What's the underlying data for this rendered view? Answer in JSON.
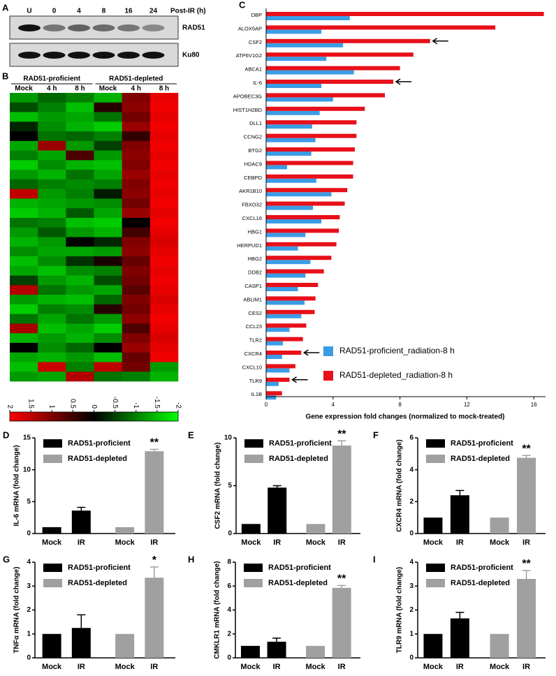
{
  "chart_data": [
    {
      "type": "blot",
      "label": "A",
      "lanes": [
        "U",
        "0",
        "4",
        "8",
        "16",
        "24"
      ],
      "xlabel": "Post-IR (h)",
      "blots": [
        {
          "name": "RAD51",
          "intensity": [
            1,
            0.5,
            0.6,
            0.55,
            0.5,
            0.4
          ]
        },
        {
          "name": "Ku80",
          "intensity": [
            1,
            1,
            1,
            1,
            1,
            1
          ]
        }
      ]
    },
    {
      "type": "heatmap",
      "label": "B",
      "groups": [
        "RAD51-proficient",
        "RAD51-depleted"
      ],
      "columns": [
        "Mock",
        "4 h",
        "8 h",
        "Mock",
        "4 h",
        "8 h"
      ],
      "clim": [
        -2,
        2
      ],
      "cbar_ticks": [
        2,
        1.5,
        1,
        0.5,
        0,
        -0.5,
        -1,
        -1.5,
        -2
      ],
      "values": [
        [
          -1.2,
          -0.8,
          -1.0,
          -1.4,
          1.0,
          1.8
        ],
        [
          -0.6,
          -1.0,
          -1.5,
          0.3,
          1.1,
          1.9
        ],
        [
          -1.5,
          -1.2,
          -1.3,
          -0.9,
          0.9,
          1.8
        ],
        [
          -0.3,
          -1.1,
          -1.4,
          -1.6,
          1.2,
          1.9
        ],
        [
          0,
          -0.9,
          -0.8,
          -1.0,
          0.4,
          1.8
        ],
        [
          -1.3,
          1.2,
          -1.2,
          -0.5,
          1.0,
          1.9
        ],
        [
          -1.0,
          -1.3,
          0.6,
          -1.2,
          1.1,
          1.8
        ],
        [
          -1.6,
          -1.1,
          -1.4,
          -1.5,
          1.0,
          1.9
        ],
        [
          -1.2,
          -1.4,
          -0.9,
          -1.3,
          1.2,
          1.8
        ],
        [
          -0.8,
          -1.0,
          -1.1,
          -1.0,
          1.0,
          1.9
        ],
        [
          1.5,
          -1.2,
          -1.0,
          -0.2,
          1.1,
          1.8
        ],
        [
          -1.4,
          -1.3,
          -1.2,
          -1.1,
          0.9,
          1.9
        ],
        [
          -1.6,
          -1.4,
          -0.7,
          -1.3,
          1.2,
          1.8
        ],
        [
          -0.9,
          -1.0,
          -1.5,
          -1.6,
          0,
          1.9
        ],
        [
          -1.2,
          -0.7,
          -1.2,
          -1.4,
          0.5,
          1.8
        ],
        [
          -1.4,
          -1.2,
          0,
          -0.3,
          1.0,
          1.7
        ],
        [
          -1.1,
          -1.3,
          -1.3,
          -1.2,
          1.1,
          1.8
        ],
        [
          -1.5,
          -1.1,
          -0.4,
          0.2,
          0.8,
          1.9
        ],
        [
          -1.3,
          -1.5,
          -1.1,
          -1.0,
          1.0,
          1.8
        ],
        [
          -0.5,
          -1.2,
          -1.4,
          -0.6,
          0.9,
          1.9
        ],
        [
          1.4,
          -0.9,
          -1.2,
          -1.3,
          0.7,
          1.8
        ],
        [
          -1.2,
          -1.4,
          -1.5,
          -0.8,
          1.0,
          1.7
        ],
        [
          -1.6,
          -1.0,
          -1.1,
          0.3,
          0.9,
          1.8
        ],
        [
          -0.9,
          -1.3,
          -0.9,
          -1.2,
          1.1,
          1.9
        ],
        [
          1.3,
          -1.5,
          -1.3,
          -1.6,
          0.6,
          1.8
        ],
        [
          -1.4,
          -1.2,
          -1.4,
          -1.1,
          1.0,
          1.7
        ],
        [
          0,
          -1.1,
          -0.8,
          0,
          1.2,
          1.8
        ],
        [
          -1.3,
          -1.4,
          -1.2,
          -1.5,
          0.8,
          1.9
        ],
        [
          -1.5,
          1.6,
          -1.0,
          1.5,
          0.9,
          -1.2
        ],
        [
          -1.2,
          -1.3,
          1.4,
          -0.9,
          -1.0,
          -1.4
        ]
      ]
    },
    {
      "type": "hbar",
      "label": "C",
      "xlabel": "Gene expression fold changes (normalized to mock-treated)",
      "categories": [
        "DBP",
        "ALOX5AP",
        "CSF2",
        "ATP6V1G2",
        "ABCA1",
        "IL-6",
        "APOBEC3G",
        "HIST1H2BD",
        "DLL1",
        "CCNG2",
        "BTG2",
        "HDAC9",
        "CEBPD",
        "AKR1B10",
        "FBXO32",
        "CXCL16",
        "HBG1",
        "HERPUD1",
        "HBG2",
        "DDB2",
        "CASP1",
        "ABLIM1",
        "CES2",
        "CCL23",
        "TLR2",
        "CXCR4",
        "CXCL10",
        "TLR9",
        "IL1B"
      ],
      "series": [
        {
          "name": "RAD51-proficient_radiation-8 h",
          "color": "#3b9ce5",
          "values": [
            5.0,
            3.3,
            4.6,
            3.6,
            5.25,
            3.3,
            4.0,
            3.2,
            2.75,
            2.95,
            2.7,
            1.25,
            3.0,
            3.9,
            2.8,
            3.3,
            2.35,
            1.9,
            2.65,
            2.35,
            1.9,
            2.3,
            2.1,
            1.4,
            1.0,
            0.95,
            1.4,
            0.75,
            0.6
          ]
        },
        {
          "name": "RAD51-depleted_radiation-8 h",
          "color": "#e8101a",
          "values": [
            16.6,
            13.7,
            9.8,
            8.8,
            8.0,
            7.6,
            7.1,
            5.9,
            5.4,
            5.4,
            5.3,
            5.2,
            5.2,
            4.85,
            4.7,
            4.4,
            4.35,
            4.2,
            3.9,
            3.45,
            3.1,
            2.95,
            2.9,
            2.4,
            2.2,
            2.1,
            1.75,
            1.4,
            0.95
          ]
        }
      ],
      "xlim": [
        0,
        16.7
      ],
      "xticks": [
        0,
        4,
        8,
        12,
        16
      ],
      "arrow_categories": [
        2,
        5,
        25,
        27
      ]
    },
    {
      "type": "bar",
      "label": "D",
      "ylabel": "IL-6 mRNA (fold change)",
      "categories": [
        "Mock",
        "IR",
        "Mock",
        "IR"
      ],
      "ylim": [
        0,
        15
      ],
      "yticks": [
        0,
        5,
        10,
        15
      ],
      "annotation": "**",
      "series": [
        {
          "name": "RAD51-proficient",
          "color": "#000000",
          "values": [
            1,
            3.6,
            null,
            null
          ],
          "errors": [
            null,
            0.5,
            null,
            null
          ]
        },
        {
          "name": "RAD51-depleted",
          "color": "#a0a0a0",
          "values": [
            null,
            null,
            1,
            12.9
          ],
          "errors": [
            null,
            null,
            null,
            0.3
          ]
        }
      ]
    },
    {
      "type": "bar",
      "label": "E",
      "ylabel": "CSF2 mRNA (fold change)",
      "categories": [
        "Mock",
        "IR",
        "Mock",
        "IR"
      ],
      "ylim": [
        0,
        10
      ],
      "yticks": [
        0,
        5,
        10
      ],
      "annotation": "**",
      "series": [
        {
          "name": "RAD51-proficient",
          "color": "#000000",
          "values": [
            1,
            4.8,
            null,
            null
          ],
          "errors": [
            null,
            0.2,
            null,
            null
          ]
        },
        {
          "name": "RAD51-depleted",
          "color": "#a0a0a0",
          "values": [
            null,
            null,
            1,
            9.2
          ],
          "errors": [
            null,
            null,
            null,
            0.5
          ]
        }
      ]
    },
    {
      "type": "bar",
      "label": "F",
      "ylabel": "CXCR4 mRNA (fold change)",
      "categories": [
        "Mock",
        "IR",
        "Mock",
        "IR"
      ],
      "ylim": [
        0,
        6
      ],
      "yticks": [
        0,
        2,
        4,
        6
      ],
      "annotation": "**",
      "series": [
        {
          "name": "RAD51-proficient",
          "color": "#000000",
          "values": [
            1,
            2.4,
            null,
            null
          ],
          "errors": [
            null,
            0.3,
            null,
            null
          ]
        },
        {
          "name": "RAD51-depleted",
          "color": "#a0a0a0",
          "values": [
            null,
            null,
            1,
            4.75
          ],
          "errors": [
            null,
            null,
            null,
            0.15
          ]
        }
      ]
    },
    {
      "type": "bar",
      "label": "G",
      "ylabel": "TNFα mRNA (fold change)",
      "categories": [
        "Mock",
        "IR",
        "Mock",
        "IR"
      ],
      "ylim": [
        0,
        4
      ],
      "yticks": [
        0,
        1,
        2,
        3,
        4
      ],
      "annotation": "*",
      "series": [
        {
          "name": "RAD51-proficient",
          "color": "#000000",
          "values": [
            1,
            1.25,
            null,
            null
          ],
          "errors": [
            null,
            0.55,
            null,
            null
          ]
        },
        {
          "name": "RAD51-depleted",
          "color": "#a0a0a0",
          "values": [
            null,
            null,
            1,
            3.35
          ],
          "errors": [
            null,
            null,
            null,
            0.45
          ]
        }
      ]
    },
    {
      "type": "bar",
      "label": "H",
      "ylabel": "CMKLR1 mRNA (fold change)",
      "categories": [
        "Mock",
        "IR",
        "Mock",
        "IR"
      ],
      "ylim": [
        0,
        8
      ],
      "yticks": [
        0,
        2,
        4,
        6,
        8
      ],
      "annotation": "**",
      "series": [
        {
          "name": "RAD51-proficient",
          "color": "#000000",
          "values": [
            1,
            1.35,
            null,
            null
          ],
          "errors": [
            null,
            0.3,
            null,
            null
          ]
        },
        {
          "name": "RAD51-depleted",
          "color": "#a0a0a0",
          "values": [
            null,
            null,
            1,
            5.85
          ],
          "errors": [
            null,
            null,
            null,
            0.2
          ]
        }
      ]
    },
    {
      "type": "bar",
      "label": "I",
      "ylabel": "TLR9 mRNA (fold change)",
      "categories": [
        "Mock",
        "IR",
        "Mock",
        "IR"
      ],
      "ylim": [
        0,
        4
      ],
      "yticks": [
        0,
        1,
        2,
        3,
        4
      ],
      "annotation": "**",
      "series": [
        {
          "name": "RAD51-proficient",
          "color": "#000000",
          "values": [
            1,
            1.65,
            null,
            null
          ],
          "errors": [
            null,
            0.25,
            null,
            null
          ]
        },
        {
          "name": "RAD51-depleted",
          "color": "#a0a0a0",
          "values": [
            null,
            null,
            1,
            3.3
          ],
          "errors": [
            null,
            null,
            null,
            0.35
          ]
        }
      ]
    }
  ]
}
